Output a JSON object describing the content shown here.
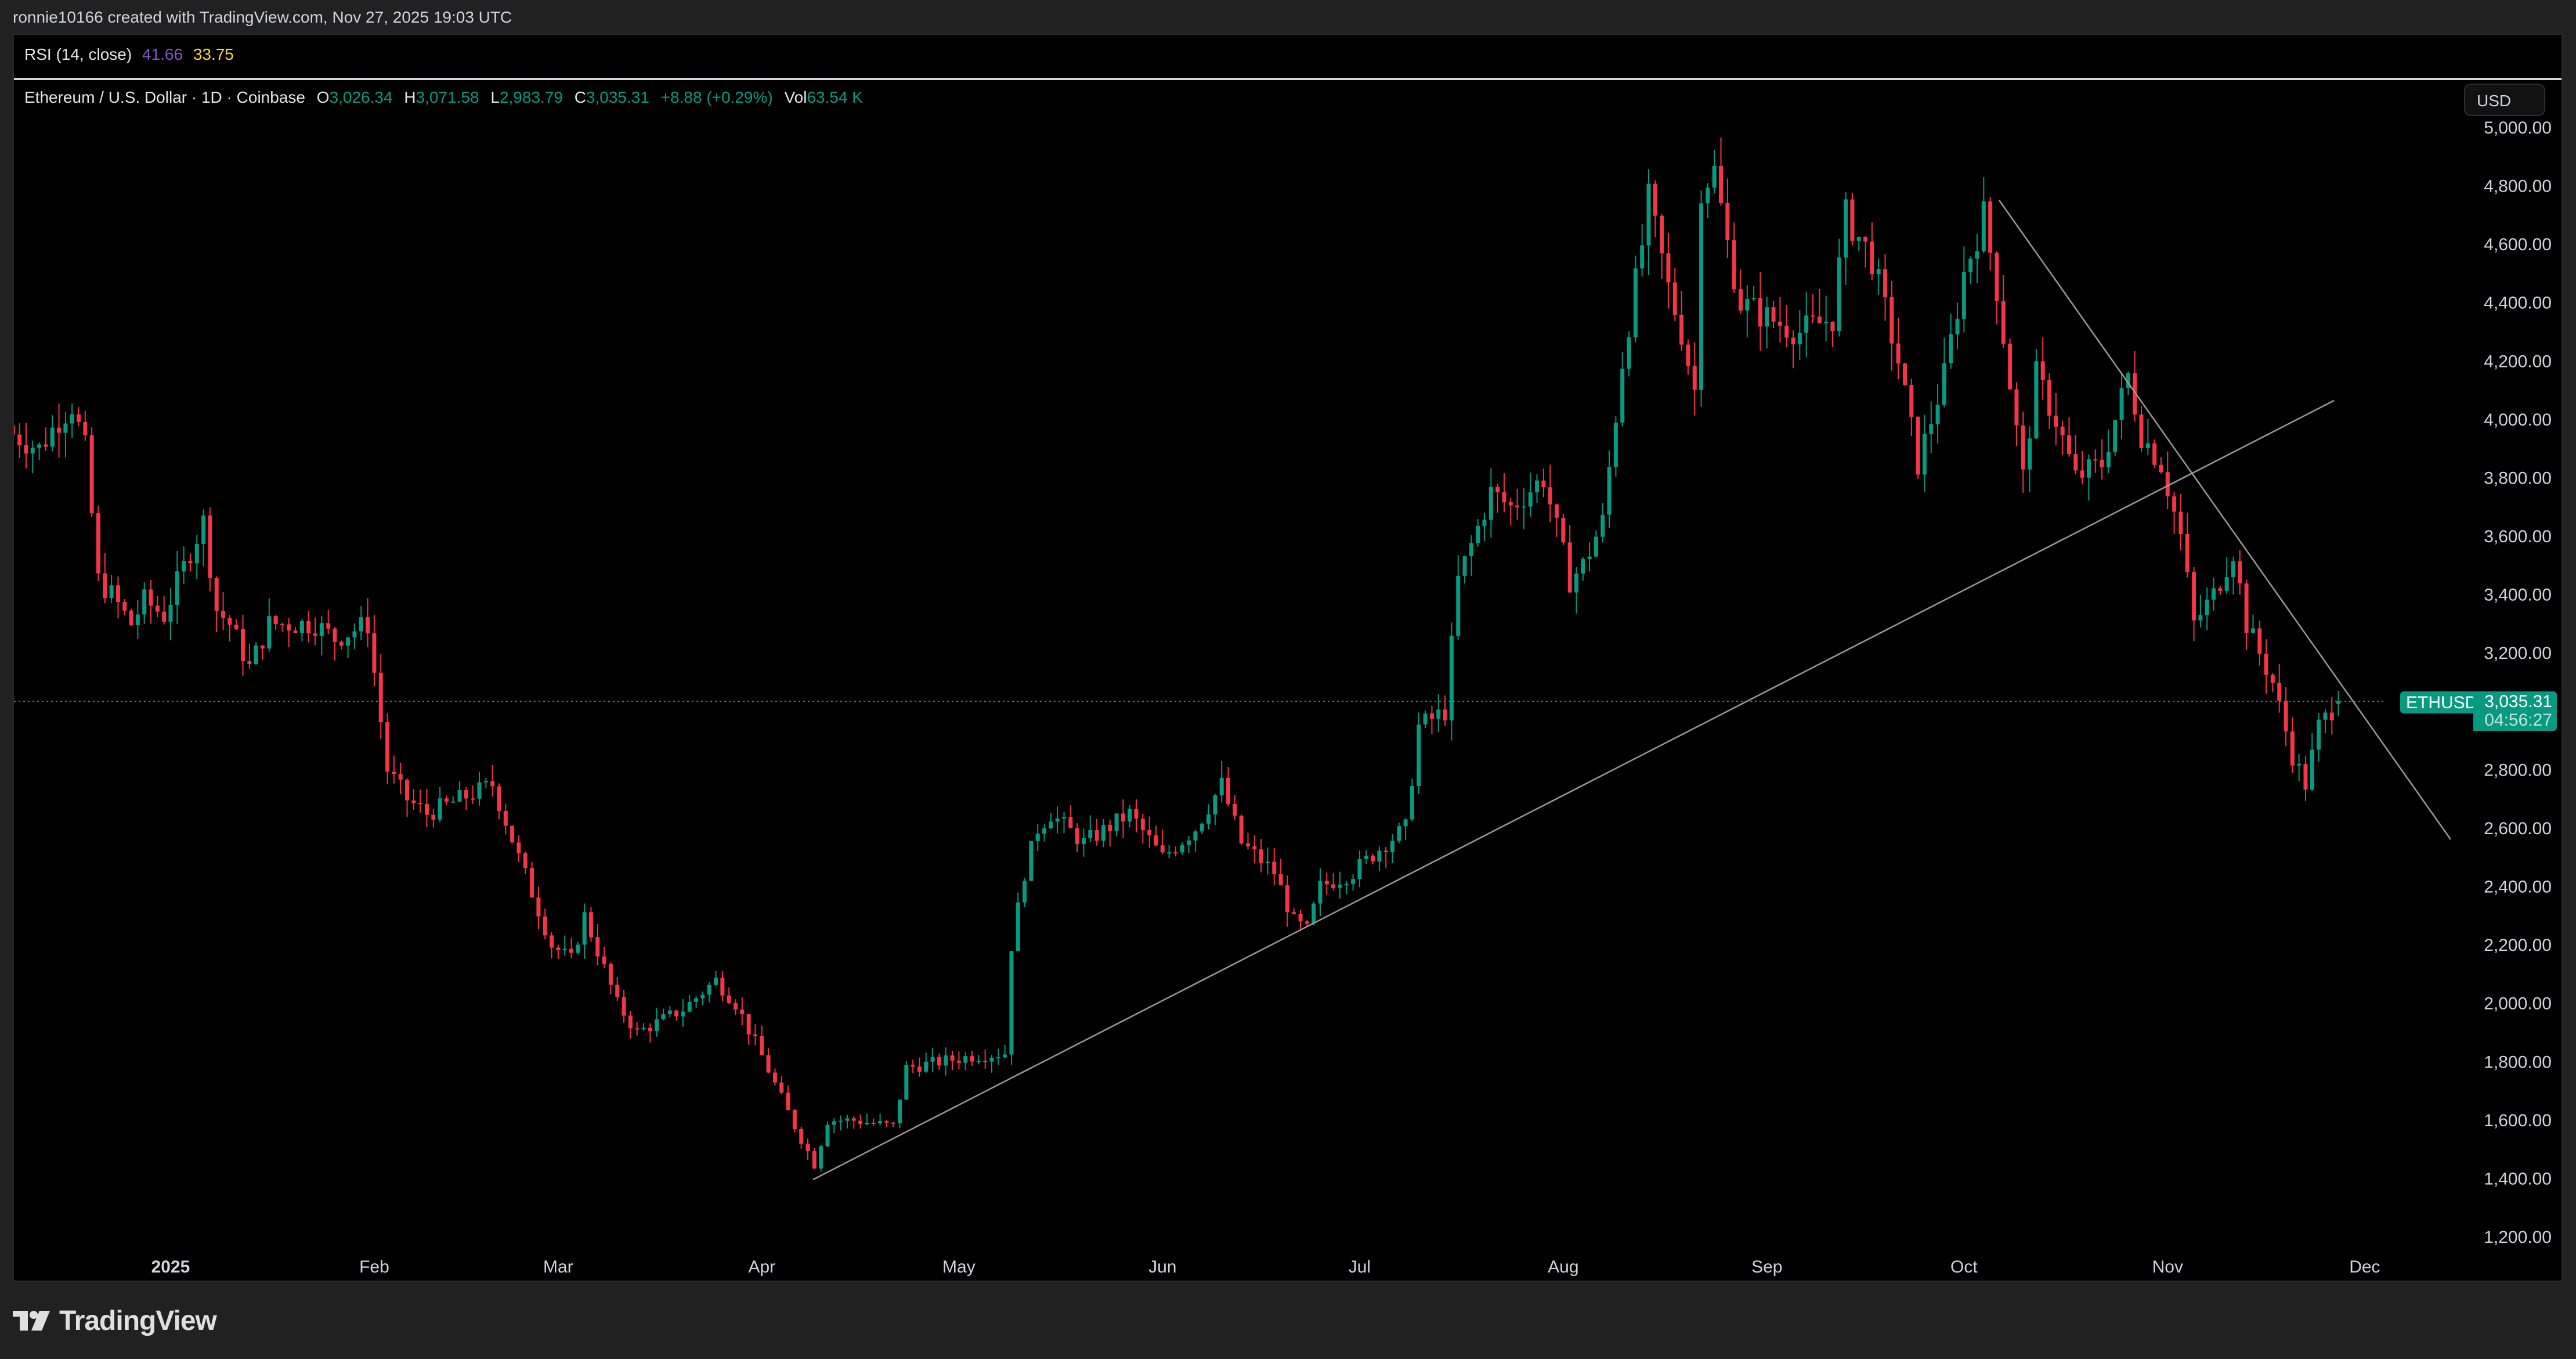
{
  "header": {
    "credit": "ronnie10166 created with TradingView.com, Nov 27, 2025 19:03 UTC"
  },
  "rsi": {
    "label": "RSI (14, close)",
    "value1": "41.66",
    "value2": "33.75",
    "color1": "#7e57c2",
    "color2": "#fdd835"
  },
  "legend": {
    "symbol": "Ethereum / U.S. Dollar · 1D · Coinbase",
    "o_label": "O",
    "o": "3,026.34",
    "h_label": "H",
    "h": "3,071.58",
    "l_label": "L",
    "l": "2,983.79",
    "c_label": "C",
    "c": "3,035.31",
    "change": "+8.88 (+0.29%)",
    "vol_label": "Vol",
    "vol": "63.54 K"
  },
  "price_scale": {
    "currency_button": "USD",
    "labels": [
      "5,000.00",
      "4,800.00",
      "4,600.00",
      "4,400.00",
      "4,200.00",
      "4,000.00",
      "3,800.00",
      "3,600.00",
      "3,400.00",
      "3,200.00",
      "3,000.00",
      "2,800.00",
      "2,600.00",
      "2,400.00",
      "2,200.00",
      "2,000.00",
      "1,800.00",
      "1,600.00",
      "1,400.00",
      "1,200.00"
    ]
  },
  "last_price": {
    "symbol_tag": "ETHUSD",
    "price": "3,035.31",
    "countdown": "04:56:27"
  },
  "time_scale": {
    "labels": [
      "2025",
      "Feb",
      "Mar",
      "Apr",
      "May",
      "Jun",
      "Jul",
      "Aug",
      "Sep",
      "Oct",
      "Nov",
      "Dec"
    ]
  },
  "branding": {
    "logo_text": "TradingView"
  },
  "colors": {
    "up": "#089981",
    "down": "#f23645",
    "trendline": "#9a9a9a",
    "background": "#000000"
  },
  "chart_data": {
    "type": "candlestick",
    "title": "Ethereum / U.S. Dollar · 1D · Coinbase",
    "xlabel": "",
    "ylabel": "USD",
    "ylim": [
      1100,
      5100
    ],
    "yticks": [
      1200,
      1400,
      1600,
      1800,
      2000,
      2200,
      2400,
      2600,
      2800,
      3000,
      3200,
      3400,
      3600,
      3800,
      4000,
      4200,
      4400,
      4600,
      4800,
      5000
    ],
    "x_range": [
      "2024-12-08",
      "2025-11-27"
    ],
    "grid": false,
    "last": {
      "open": 3026.34,
      "high": 3071.58,
      "low": 2983.79,
      "close": 3035.31,
      "change": 8.88,
      "change_pct": 0.29,
      "volume": "63.54K"
    },
    "close_anchors_day_offset_from_2025_01_01": [
      [
        -24,
        3950
      ],
      [
        -20,
        3900
      ],
      [
        -17,
        4000
      ],
      [
        -15,
        4050
      ],
      [
        -13,
        3900
      ],
      [
        -11,
        3450
      ],
      [
        -9,
        3400
      ],
      [
        -6,
        3300
      ],
      [
        -4,
        3380
      ],
      [
        -1,
        3330
      ],
      [
        3,
        3550
      ],
      [
        5,
        3650
      ],
      [
        7,
        3350
      ],
      [
        9,
        3300
      ],
      [
        12,
        3150
      ],
      [
        15,
        3300
      ],
      [
        19,
        3300
      ],
      [
        22,
        3300
      ],
      [
        25,
        3250
      ],
      [
        30,
        3300
      ],
      [
        33,
        2800
      ],
      [
        36,
        2700
      ],
      [
        39,
        2650
      ],
      [
        44,
        2700
      ],
      [
        49,
        2750
      ],
      [
        53,
        2500
      ],
      [
        58,
        2200
      ],
      [
        61,
        2150
      ],
      [
        63,
        2300
      ],
      [
        68,
        2000
      ],
      [
        71,
        1900
      ],
      [
        78,
        1980
      ],
      [
        83,
        2080
      ],
      [
        86,
        2000
      ],
      [
        90,
        1820
      ],
      [
        95,
        1580
      ],
      [
        98,
        1450
      ],
      [
        100,
        1600
      ],
      [
        104,
        1600
      ],
      [
        110,
        1580
      ],
      [
        112,
        1780
      ],
      [
        117,
        1800
      ],
      [
        122,
        1820
      ],
      [
        127,
        1830
      ],
      [
        128,
        2200
      ],
      [
        130,
        2450
      ],
      [
        132,
        2600
      ],
      [
        134,
        2650
      ],
      [
        139,
        2550
      ],
      [
        146,
        2650
      ],
      [
        151,
        2500
      ],
      [
        156,
        2600
      ],
      [
        160,
        2750
      ],
      [
        163,
        2550
      ],
      [
        168,
        2450
      ],
      [
        171,
        2280
      ],
      [
        173,
        2250
      ],
      [
        175,
        2400
      ],
      [
        180,
        2450
      ],
      [
        185,
        2550
      ],
      [
        188,
        2600
      ],
      [
        190,
        2950
      ],
      [
        194,
        3000
      ],
      [
        196,
        3450
      ],
      [
        201,
        3750
      ],
      [
        204,
        3700
      ],
      [
        209,
        3800
      ],
      [
        213,
        3450
      ],
      [
        215,
        3500
      ],
      [
        218,
        3650
      ],
      [
        221,
        4200
      ],
      [
        224,
        4600
      ],
      [
        225,
        4750
      ],
      [
        228,
        4450
      ],
      [
        230,
        4300
      ],
      [
        232,
        4100
      ],
      [
        233,
        4800
      ],
      [
        235,
        4850
      ],
      [
        237,
        4600
      ],
      [
        239,
        4400
      ],
      [
        243,
        4350
      ],
      [
        248,
        4300
      ],
      [
        253,
        4350
      ],
      [
        255,
        4700
      ],
      [
        259,
        4550
      ],
      [
        263,
        4200
      ],
      [
        266,
        3850
      ],
      [
        270,
        4150
      ],
      [
        273,
        4500
      ],
      [
        276,
        4700
      ],
      [
        278,
        4450
      ],
      [
        282,
        3800
      ],
      [
        284,
        4150
      ],
      [
        287,
        4000
      ],
      [
        290,
        3800
      ],
      [
        294,
        3850
      ],
      [
        298,
        4150
      ],
      [
        300,
        3950
      ],
      [
        303,
        3850
      ],
      [
        306,
        3600
      ],
      [
        308,
        3300
      ],
      [
        311,
        3400
      ],
      [
        314,
        3550
      ],
      [
        316,
        3300
      ],
      [
        320,
        3100
      ],
      [
        323,
        2850
      ],
      [
        325,
        2750
      ],
      [
        327,
        2950
      ],
      [
        330,
        3035
      ]
    ],
    "trendlines": [
      {
        "name": "ascending-support",
        "from": {
          "date": "2025-04-09",
          "price": 1385
        },
        "to": {
          "date": "2025-11-27",
          "price": 4050
        }
      },
      {
        "name": "descending-resistance",
        "from": {
          "date": "2025-10-06",
          "price": 4760
        },
        "to": {
          "date": "2025-12-15",
          "price": 2560
        }
      }
    ]
  }
}
